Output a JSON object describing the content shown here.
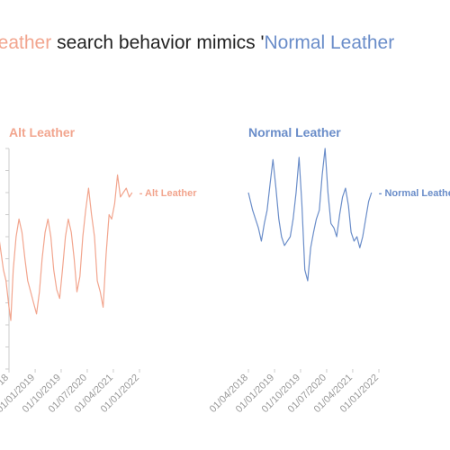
{
  "title": {
    "part1": "Leather",
    "part2": " search behavior mimics '",
    "part3": "Normal Leather"
  },
  "colors": {
    "alt": "#F2A58E",
    "normal": "#6A8DC9",
    "axis": "#cccccc",
    "tick_text": "#999999"
  },
  "chart_data": [
    {
      "type": "line",
      "title": "Alt Leather",
      "series": [
        {
          "name": "Alt Leather",
          "x": [
            "2017-11-01",
            "2017-12-15",
            "2018-02-01",
            "2018-03-01",
            "2018-04-01",
            "2018-04-20",
            "2018-05-15",
            "2018-06-15",
            "2018-07-15",
            "2018-08-15",
            "2018-09-15",
            "2018-10-15",
            "2018-11-15",
            "2018-12-15",
            "2019-01-15",
            "2019-02-15",
            "2019-03-15",
            "2019-04-15",
            "2019-05-15",
            "2019-06-15",
            "2019-07-15",
            "2019-08-15",
            "2019-09-15",
            "2019-10-15",
            "2019-11-15",
            "2019-12-15",
            "2020-01-15",
            "2020-02-15",
            "2020-03-15",
            "2020-04-15",
            "2020-05-15",
            "2020-06-15",
            "2020-07-15",
            "2020-08-15",
            "2020-09-15",
            "2020-10-15",
            "2020-11-15",
            "2020-12-15",
            "2021-01-15",
            "2021-02-15",
            "2021-03-15",
            "2021-04-15",
            "2021-05-15",
            "2021-06-15",
            "2021-07-15",
            "2021-08-15",
            "2021-09-15",
            "2021-10-15"
          ],
          "y": [
            80,
            60,
            45,
            40,
            28,
            22,
            45,
            60,
            68,
            62,
            50,
            40,
            35,
            30,
            25,
            35,
            50,
            62,
            68,
            60,
            45,
            36,
            32,
            45,
            60,
            68,
            62,
            50,
            35,
            42,
            60,
            72,
            82,
            70,
            60,
            40,
            35,
            28,
            52,
            70,
            68,
            75,
            88,
            78,
            80,
            82,
            78,
            80
          ]
        }
      ]
    },
    {
      "type": "line",
      "title": "Normal Leather",
      "series": [
        {
          "name": "Normal Leather",
          "x": [
            "2018-04-01",
            "2018-05-15",
            "2018-06-15",
            "2018-07-15",
            "2018-08-15",
            "2018-09-15",
            "2018-10-15",
            "2018-11-15",
            "2018-12-15",
            "2019-01-15",
            "2019-02-15",
            "2019-03-15",
            "2019-04-15",
            "2019-05-15",
            "2019-06-15",
            "2019-07-15",
            "2019-08-15",
            "2019-09-15",
            "2019-10-15",
            "2019-11-15",
            "2019-12-15",
            "2020-01-15",
            "2020-02-15",
            "2020-03-15",
            "2020-04-15",
            "2020-05-15",
            "2020-06-15",
            "2020-07-15",
            "2020-08-15",
            "2020-09-15",
            "2020-10-15",
            "2020-11-15",
            "2020-12-15",
            "2021-01-15",
            "2021-02-15",
            "2021-03-15",
            "2021-04-15",
            "2021-05-15",
            "2021-06-15",
            "2021-07-15",
            "2021-08-15",
            "2021-09-15",
            "2021-10-15"
          ],
          "y": [
            80,
            72,
            68,
            64,
            58,
            66,
            72,
            84,
            95,
            82,
            68,
            60,
            56,
            58,
            60,
            68,
            80,
            96,
            75,
            45,
            40,
            55,
            62,
            68,
            72,
            88,
            100,
            80,
            66,
            64,
            60,
            70,
            78,
            82,
            74,
            62,
            58,
            60,
            55,
            60,
            68,
            76,
            80
          ]
        }
      ]
    }
  ]
}
